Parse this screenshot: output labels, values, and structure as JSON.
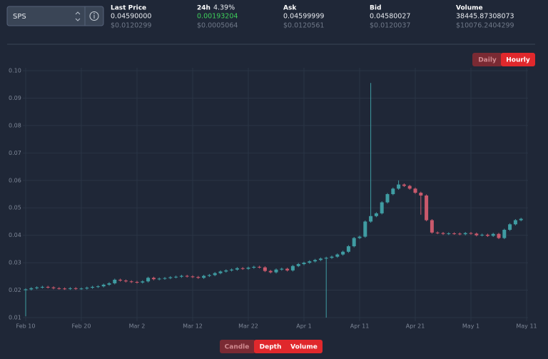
{
  "header": {
    "pair": "SPS",
    "stats": [
      {
        "label": "Last Price",
        "value": "0.04590000",
        "usd": "$0.0120299"
      },
      {
        "label": "24h",
        "change": "4.39%",
        "value": "0.00193204",
        "usd": "$0.0005064"
      },
      {
        "label": "Ask",
        "value": "0.04599999",
        "usd": "$0.0120561"
      },
      {
        "label": "Bid",
        "value": "0.04580027",
        "usd": "$0.0120037"
      },
      {
        "label": "Volume",
        "value": "38445.87308073",
        "usd": "$10076.2404299"
      }
    ]
  },
  "interval_buttons": [
    "Daily",
    "Hourly"
  ],
  "view_buttons": [
    "Candle",
    "Depth",
    "Volume"
  ],
  "chart_data": {
    "type": "candlestick",
    "up_color": "#3f9ca2",
    "down_color": "#c9596c",
    "grid": true,
    "xlim": [
      0,
      90
    ],
    "xticks": [
      {
        "value": 0,
        "label": "Feb 10"
      },
      {
        "value": 10,
        "label": "Feb 20"
      },
      {
        "value": 20,
        "label": "Mar 2"
      },
      {
        "value": 30,
        "label": "Mar 12"
      },
      {
        "value": 40,
        "label": "Mar 22"
      },
      {
        "value": 50,
        "label": "Apr 1"
      },
      {
        "value": 60,
        "label": "Apr 11"
      },
      {
        "value": 70,
        "label": "Apr 21"
      },
      {
        "value": 80,
        "label": "May 1"
      },
      {
        "value": 90,
        "label": "May 11"
      }
    ],
    "ylim": [
      0.01,
      0.1
    ],
    "yticks": [
      0.01,
      0.02,
      0.03,
      0.04,
      0.05,
      0.06,
      0.07,
      0.08,
      0.09,
      {
        "value": 0.1,
        "label": "0.10"
      }
    ],
    "open": [
      0.02,
      0.0203,
      0.0207,
      0.021,
      0.0212,
      0.021,
      0.0207,
      0.0206,
      0.0205,
      0.0207,
      0.0205,
      0.0206,
      0.0209,
      0.0212,
      0.0214,
      0.022,
      0.0225,
      0.0238,
      0.0235,
      0.0232,
      0.023,
      0.0228,
      0.0232,
      0.0245,
      0.024,
      0.0242,
      0.0244,
      0.0247,
      0.0249,
      0.0252,
      0.025,
      0.0248,
      0.0245,
      0.0252,
      0.0255,
      0.0262,
      0.0268,
      0.0272,
      0.0275,
      0.028,
      0.0278,
      0.0282,
      0.0285,
      0.0283,
      0.027,
      0.0265,
      0.0275,
      0.0278,
      0.0272,
      0.0288,
      0.0295,
      0.03,
      0.0305,
      0.031,
      0.0315,
      0.0318,
      0.0322,
      0.033,
      0.034,
      0.036,
      0.039,
      0.0395,
      0.045,
      0.047,
      0.048,
      0.052,
      0.055,
      0.057,
      0.0585,
      0.058,
      0.057,
      0.0555,
      0.0545,
      0.0455,
      0.041,
      0.0408,
      0.0405,
      0.0407,
      0.0406,
      0.0404,
      0.0408,
      0.0406,
      0.04,
      0.0402,
      0.0398,
      0.0405,
      0.039,
      0.042,
      0.044,
      0.0455
    ],
    "high": [
      0.0207,
      0.0211,
      0.0214,
      0.0216,
      0.0216,
      0.0214,
      0.0211,
      0.021,
      0.0211,
      0.0211,
      0.021,
      0.0213,
      0.0216,
      0.0218,
      0.0224,
      0.0229,
      0.0242,
      0.0242,
      0.0239,
      0.0236,
      0.0234,
      0.0236,
      0.0249,
      0.0249,
      0.0246,
      0.0248,
      0.0251,
      0.0253,
      0.0256,
      0.0256,
      0.0254,
      0.0252,
      0.0256,
      0.0259,
      0.0266,
      0.0272,
      0.0276,
      0.0279,
      0.0284,
      0.0284,
      0.0286,
      0.0289,
      0.0289,
      0.0287,
      0.0274,
      0.0279,
      0.0282,
      0.0282,
      0.0292,
      0.0299,
      0.0304,
      0.0309,
      0.0314,
      0.0319,
      0.0322,
      0.0326,
      0.0334,
      0.0344,
      0.0364,
      0.0394,
      0.0399,
      0.0454,
      0.0955,
      0.0484,
      0.0524,
      0.0554,
      0.0574,
      0.06,
      0.0589,
      0.0584,
      0.0574,
      0.0559,
      0.0549,
      0.0459,
      0.0414,
      0.0412,
      0.0411,
      0.0411,
      0.041,
      0.0412,
      0.0412,
      0.041,
      0.0406,
      0.0406,
      0.0409,
      0.0409,
      0.0424,
      0.0444,
      0.0459,
      0.0464
    ],
    "low": [
      0.0105,
      0.0199,
      0.0203,
      0.0206,
      0.0206,
      0.0203,
      0.0202,
      0.0201,
      0.0201,
      0.0201,
      0.0201,
      0.0202,
      0.0205,
      0.0208,
      0.021,
      0.0216,
      0.0221,
      0.0231,
      0.0228,
      0.0226,
      0.0224,
      0.0224,
      0.0228,
      0.0236,
      0.0236,
      0.0238,
      0.024,
      0.0243,
      0.0245,
      0.0246,
      0.0244,
      0.0241,
      0.0241,
      0.0248,
      0.0251,
      0.0258,
      0.0264,
      0.0268,
      0.0271,
      0.0274,
      0.0274,
      0.0278,
      0.0279,
      0.0266,
      0.0261,
      0.0261,
      0.0271,
      0.0268,
      0.0268,
      0.0284,
      0.0291,
      0.0296,
      0.0301,
      0.0306,
      0.01,
      0.0314,
      0.0318,
      0.0326,
      0.0336,
      0.0356,
      0.0386,
      0.0391,
      0.0446,
      0.0466,
      0.0476,
      0.0516,
      0.0546,
      0.0566,
      0.0576,
      0.0566,
      0.0551,
      0.0475,
      0.0451,
      0.0406,
      0.0404,
      0.0401,
      0.0401,
      0.0402,
      0.04,
      0.04,
      0.0402,
      0.0396,
      0.0396,
      0.0394,
      0.0394,
      0.0386,
      0.0386,
      0.0416,
      0.0436,
      0.0451
    ],
    "close": [
      0.0203,
      0.0207,
      0.021,
      0.0212,
      0.021,
      0.0207,
      0.0206,
      0.0205,
      0.0207,
      0.0205,
      0.0206,
      0.0209,
      0.0212,
      0.0214,
      0.022,
      0.0225,
      0.0238,
      0.0235,
      0.0232,
      0.023,
      0.0228,
      0.0232,
      0.0245,
      0.024,
      0.0242,
      0.0244,
      0.0247,
      0.0249,
      0.0252,
      0.025,
      0.0248,
      0.0245,
      0.0252,
      0.0255,
      0.0262,
      0.0268,
      0.0272,
      0.0275,
      0.028,
      0.0278,
      0.0282,
      0.0285,
      0.0283,
      0.027,
      0.0265,
      0.0275,
      0.0278,
      0.0272,
      0.0288,
      0.0295,
      0.03,
      0.0305,
      0.031,
      0.0315,
      0.0318,
      0.0322,
      0.033,
      0.034,
      0.036,
      0.039,
      0.0395,
      0.045,
      0.047,
      0.048,
      0.052,
      0.055,
      0.057,
      0.0585,
      0.058,
      0.057,
      0.0555,
      0.0545,
      0.0455,
      0.041,
      0.0408,
      0.0405,
      0.0407,
      0.0406,
      0.0404,
      0.0408,
      0.0406,
      0.04,
      0.0402,
      0.0398,
      0.0405,
      0.039,
      0.042,
      0.044,
      0.0455,
      0.046
    ]
  }
}
